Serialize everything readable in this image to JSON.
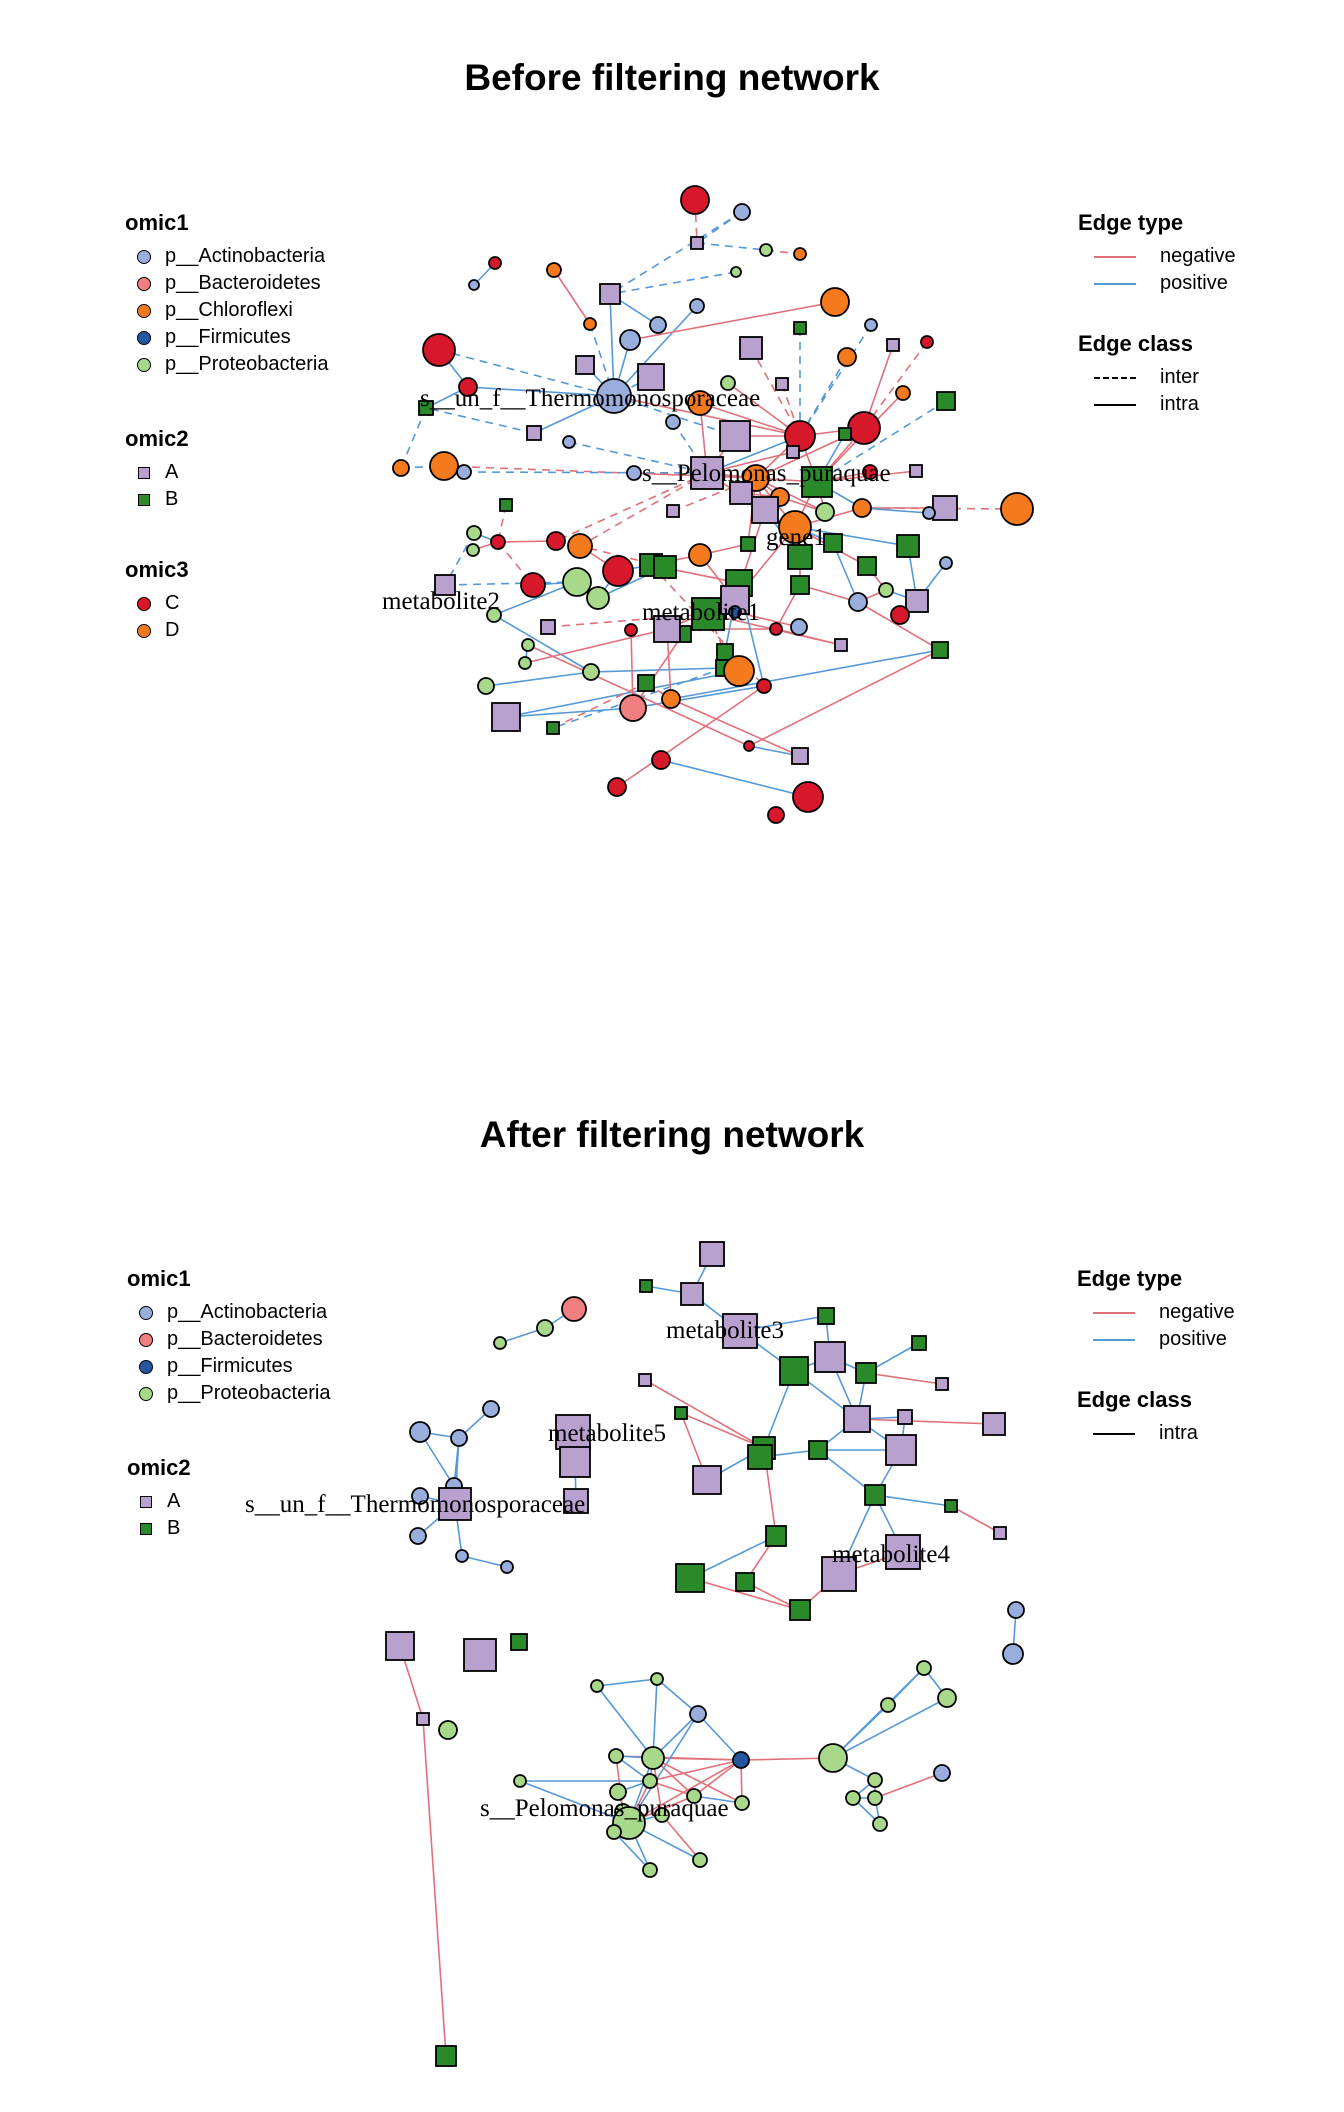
{
  "colors": {
    "Actinobacteria": "#9aaede",
    "Bacteroidetes": "#f08080",
    "Chloroflexi": "#f57a1e",
    "Firmicutes": "#2457a0",
    "Proteobacteria": "#a8d98a",
    "A": "#b8a0cf",
    "B": "#2a8a2a",
    "C": "#d7182a",
    "D": "#f57a1e",
    "negative": "#e0707a",
    "positive": "#5598d8",
    "line": "#000000"
  },
  "panels": [
    {
      "title": "Before filtering network",
      "legend_left": [
        {
          "heading": "omic1",
          "items": [
            {
              "label": "p__Actinobacteria",
              "shape": "circle",
              "color": "#9aaede"
            },
            {
              "label": "p__Bacteroidetes",
              "shape": "circle",
              "color": "#f08080"
            },
            {
              "label": "p__Chloroflexi",
              "shape": "circle",
              "color": "#f57a1e"
            },
            {
              "label": "p__Firmicutes",
              "shape": "circle",
              "color": "#2457a0"
            },
            {
              "label": "p__Proteobacteria",
              "shape": "circle",
              "color": "#a8d98a"
            }
          ]
        },
        {
          "heading": "omic2",
          "items": [
            {
              "label": "A",
              "shape": "square",
              "color": "#b8a0cf"
            },
            {
              "label": "B",
              "shape": "square",
              "color": "#2a8a2a"
            }
          ]
        },
        {
          "heading": "omic3",
          "items": [
            {
              "label": "C",
              "shape": "circle",
              "color": "#d7182a"
            },
            {
              "label": "D",
              "shape": "circle",
              "color": "#f57a1e"
            }
          ]
        }
      ],
      "legend_right": [
        {
          "heading": "Edge type",
          "items": [
            {
              "label": "negative",
              "line": "solid",
              "color": "#e0707a"
            },
            {
              "label": "positive",
              "line": "solid",
              "color": "#5598d8"
            }
          ]
        },
        {
          "heading": "Edge class",
          "items": [
            {
              "label": "inter",
              "line": "dashed",
              "color": "#000000"
            },
            {
              "label": "intra",
              "line": "solid",
              "color": "#000000"
            }
          ]
        }
      ],
      "node_labels": [
        "s__un_f__Thermomonosporaceae",
        "s__Pelomonas_puraquae",
        "gene1",
        "metabolite2",
        "metabolite1"
      ]
    },
    {
      "title": "After filtering network",
      "legend_left": [
        {
          "heading": "omic1",
          "items": [
            {
              "label": "p__Actinobacteria",
              "shape": "circle",
              "color": "#9aaede"
            },
            {
              "label": "p__Bacteroidetes",
              "shape": "circle",
              "color": "#f08080"
            },
            {
              "label": "p__Firmicutes",
              "shape": "circle",
              "color": "#2457a0"
            },
            {
              "label": "p__Proteobacteria",
              "shape": "circle",
              "color": "#a8d98a"
            }
          ]
        },
        {
          "heading": "omic2",
          "items": [
            {
              "label": "A",
              "shape": "square",
              "color": "#b8a0cf"
            },
            {
              "label": "B",
              "shape": "square",
              "color": "#2a8a2a"
            }
          ]
        }
      ],
      "legend_right": [
        {
          "heading": "Edge type",
          "items": [
            {
              "label": "negative",
              "line": "solid",
              "color": "#e0707a"
            },
            {
              "label": "positive",
              "line": "solid",
              "color": "#5598d8"
            }
          ]
        },
        {
          "heading": "Edge class",
          "items": [
            {
              "label": "intra",
              "line": "solid",
              "color": "#000000"
            }
          ]
        }
      ],
      "node_labels": [
        "metabolite3",
        "metabolite5",
        "s__un_f__Thermomonosporaceae",
        "metabolite4",
        "s__Pelomonas_puraquae"
      ]
    }
  ]
}
